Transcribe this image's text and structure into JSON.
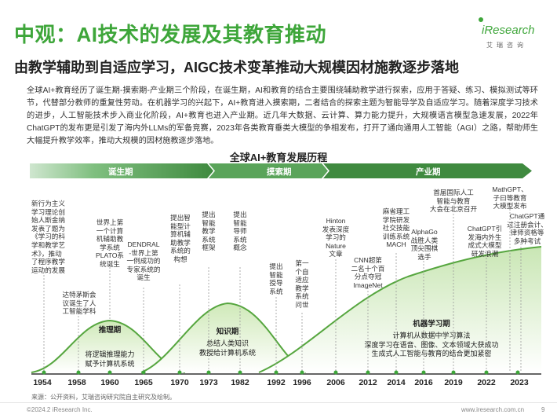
{
  "header": {
    "title": "中观：AI技术的发展及其教育推动",
    "subtitle": "由教学辅助到自适应学习，AIGC技术变革推动大规模因材施教逐步落地"
  },
  "logo": {
    "brand": "iResearch",
    "sub": "艾瑞咨询",
    "color": "#3ea63a"
  },
  "paragraph": "全球AI+教育经历了诞生期-摸索期-产业期三个阶段，在诞生期，AI和教育的结合主要围绕辅助教学进行探索，应用于答疑、练习、模拟测试等环节，代替部分教师的重复性劳动。在机器学习的兴起下，AI+教育进入摸索期，二者结合的探索主题为智能导学及自适应学习。随着深度学习技术的进步，人工智能技术步入商业化阶段，AI+教育也进入产业期。近几年大数据、云计算、算力能力提升，大规模语言模型急速发展，2022年ChatGPT的发布更是引发了海内外LLMs的军备竞赛，2023年各类教育垂类大模型的争相发布，打开了通向通用人工智能（AGI）之路，帮助师生大幅提升教学效率，推动大规模的因材施教逐步落地。",
  "timeline": {
    "title": "全球AI+教育发展历程",
    "periods": [
      {
        "label": "诞生期"
      },
      {
        "label": "摸索期"
      },
      {
        "label": "产业期"
      }
    ],
    "years": [
      "1954",
      "1958",
      "1960",
      "1965",
      "1970",
      "1973",
      "1982",
      "1992",
      "1996",
      "2006",
      "2012",
      "2014",
      "2016",
      "2019",
      "2022",
      "2023"
    ],
    "hills": [
      {
        "label": "推理期",
        "desc": [
          "将逻辑推理能力",
          "赋予计算机系统"
        ]
      },
      {
        "label": "知识期",
        "desc": [
          "总结人类知识",
          "教授给计算机系统"
        ]
      },
      {
        "label": "机器学习期",
        "desc": [
          "计算机从数据中学习算法",
          "深度学习在语音、图像、文本领域大获成功",
          "生成式人工智能与教育的结合更加紧密"
        ]
      }
    ],
    "events": [
      {
        "year": "1954",
        "lines": [
          "新行为主义",
          "学习理论创",
          "始人斯金纳",
          "发表了题为",
          "《学习的科",
          "学和教学艺",
          "术》，推动",
          "了程序教学",
          "运动的发展"
        ]
      },
      {
        "year": "1958",
        "lines": [
          "达特茅斯会",
          "议诞生了人",
          "工智能学科"
        ]
      },
      {
        "year": "1960",
        "lines": [
          "世界上第",
          "一个计算",
          "机辅助教",
          "学系统",
          "PLATO系",
          "统诞生"
        ]
      },
      {
        "year": "1965",
        "lines": [
          "DENDRAL",
          "-世界上第",
          "一例成功的",
          "专家系统的",
          "诞生"
        ]
      },
      {
        "year": "1970",
        "lines": [
          "提出智",
          "能型计",
          "算机辅",
          "助教学",
          "系统的",
          "构想"
        ]
      },
      {
        "year": "1973",
        "lines": [
          "提出",
          "智能",
          "教学",
          "系统",
          "框架"
        ]
      },
      {
        "year": "1982",
        "lines": [
          "提出",
          "智能",
          "导师",
          "系统",
          "概念"
        ]
      },
      {
        "year": "1992",
        "lines": [
          "提出",
          "智能",
          "授导",
          "系统"
        ]
      },
      {
        "year": "1996",
        "lines": [
          "第一",
          "个自",
          "适应",
          "教学",
          "系统",
          "问世"
        ]
      },
      {
        "year": "2006",
        "lines": [
          "Hinton",
          "发表深度",
          "学习的",
          "Nature",
          "文章"
        ]
      },
      {
        "year": "2012",
        "lines": [
          "CNN超第",
          "二名十个百",
          "分点夺冠",
          "ImageNet"
        ]
      },
      {
        "year": "2014",
        "lines": [
          "麻省理工",
          "学院研发",
          "社交技能",
          "训练系统",
          "MACH"
        ]
      },
      {
        "year": "2016",
        "lines": [
          "AlphaGo",
          "战胜人类",
          "顶尖围棋",
          "选手"
        ]
      },
      {
        "year": "2019",
        "lines": [
          "首届国际人工",
          "智能与教育",
          "大会在北京召开"
        ]
      },
      {
        "year": "2022",
        "lines": [
          "ChatGPT引",
          "发海内外生",
          "成式大模型",
          "研发浪潮"
        ]
      },
      {
        "year": "2023a",
        "lines": [
          "MathGPT、",
          "子曰等教育",
          "大模型发布"
        ]
      },
      {
        "year": "2023b",
        "lines": [
          "ChatGPT通",
          "过注册会计、",
          "律师资格等",
          "多种考试"
        ]
      }
    ]
  },
  "source": "来源：公开资料，艾瑞咨询研究院自主研究及绘制。",
  "footer": {
    "copyright": "©2024.2 iResearch Inc.",
    "url": "www.iresearch.com.cn",
    "page": "9"
  }
}
